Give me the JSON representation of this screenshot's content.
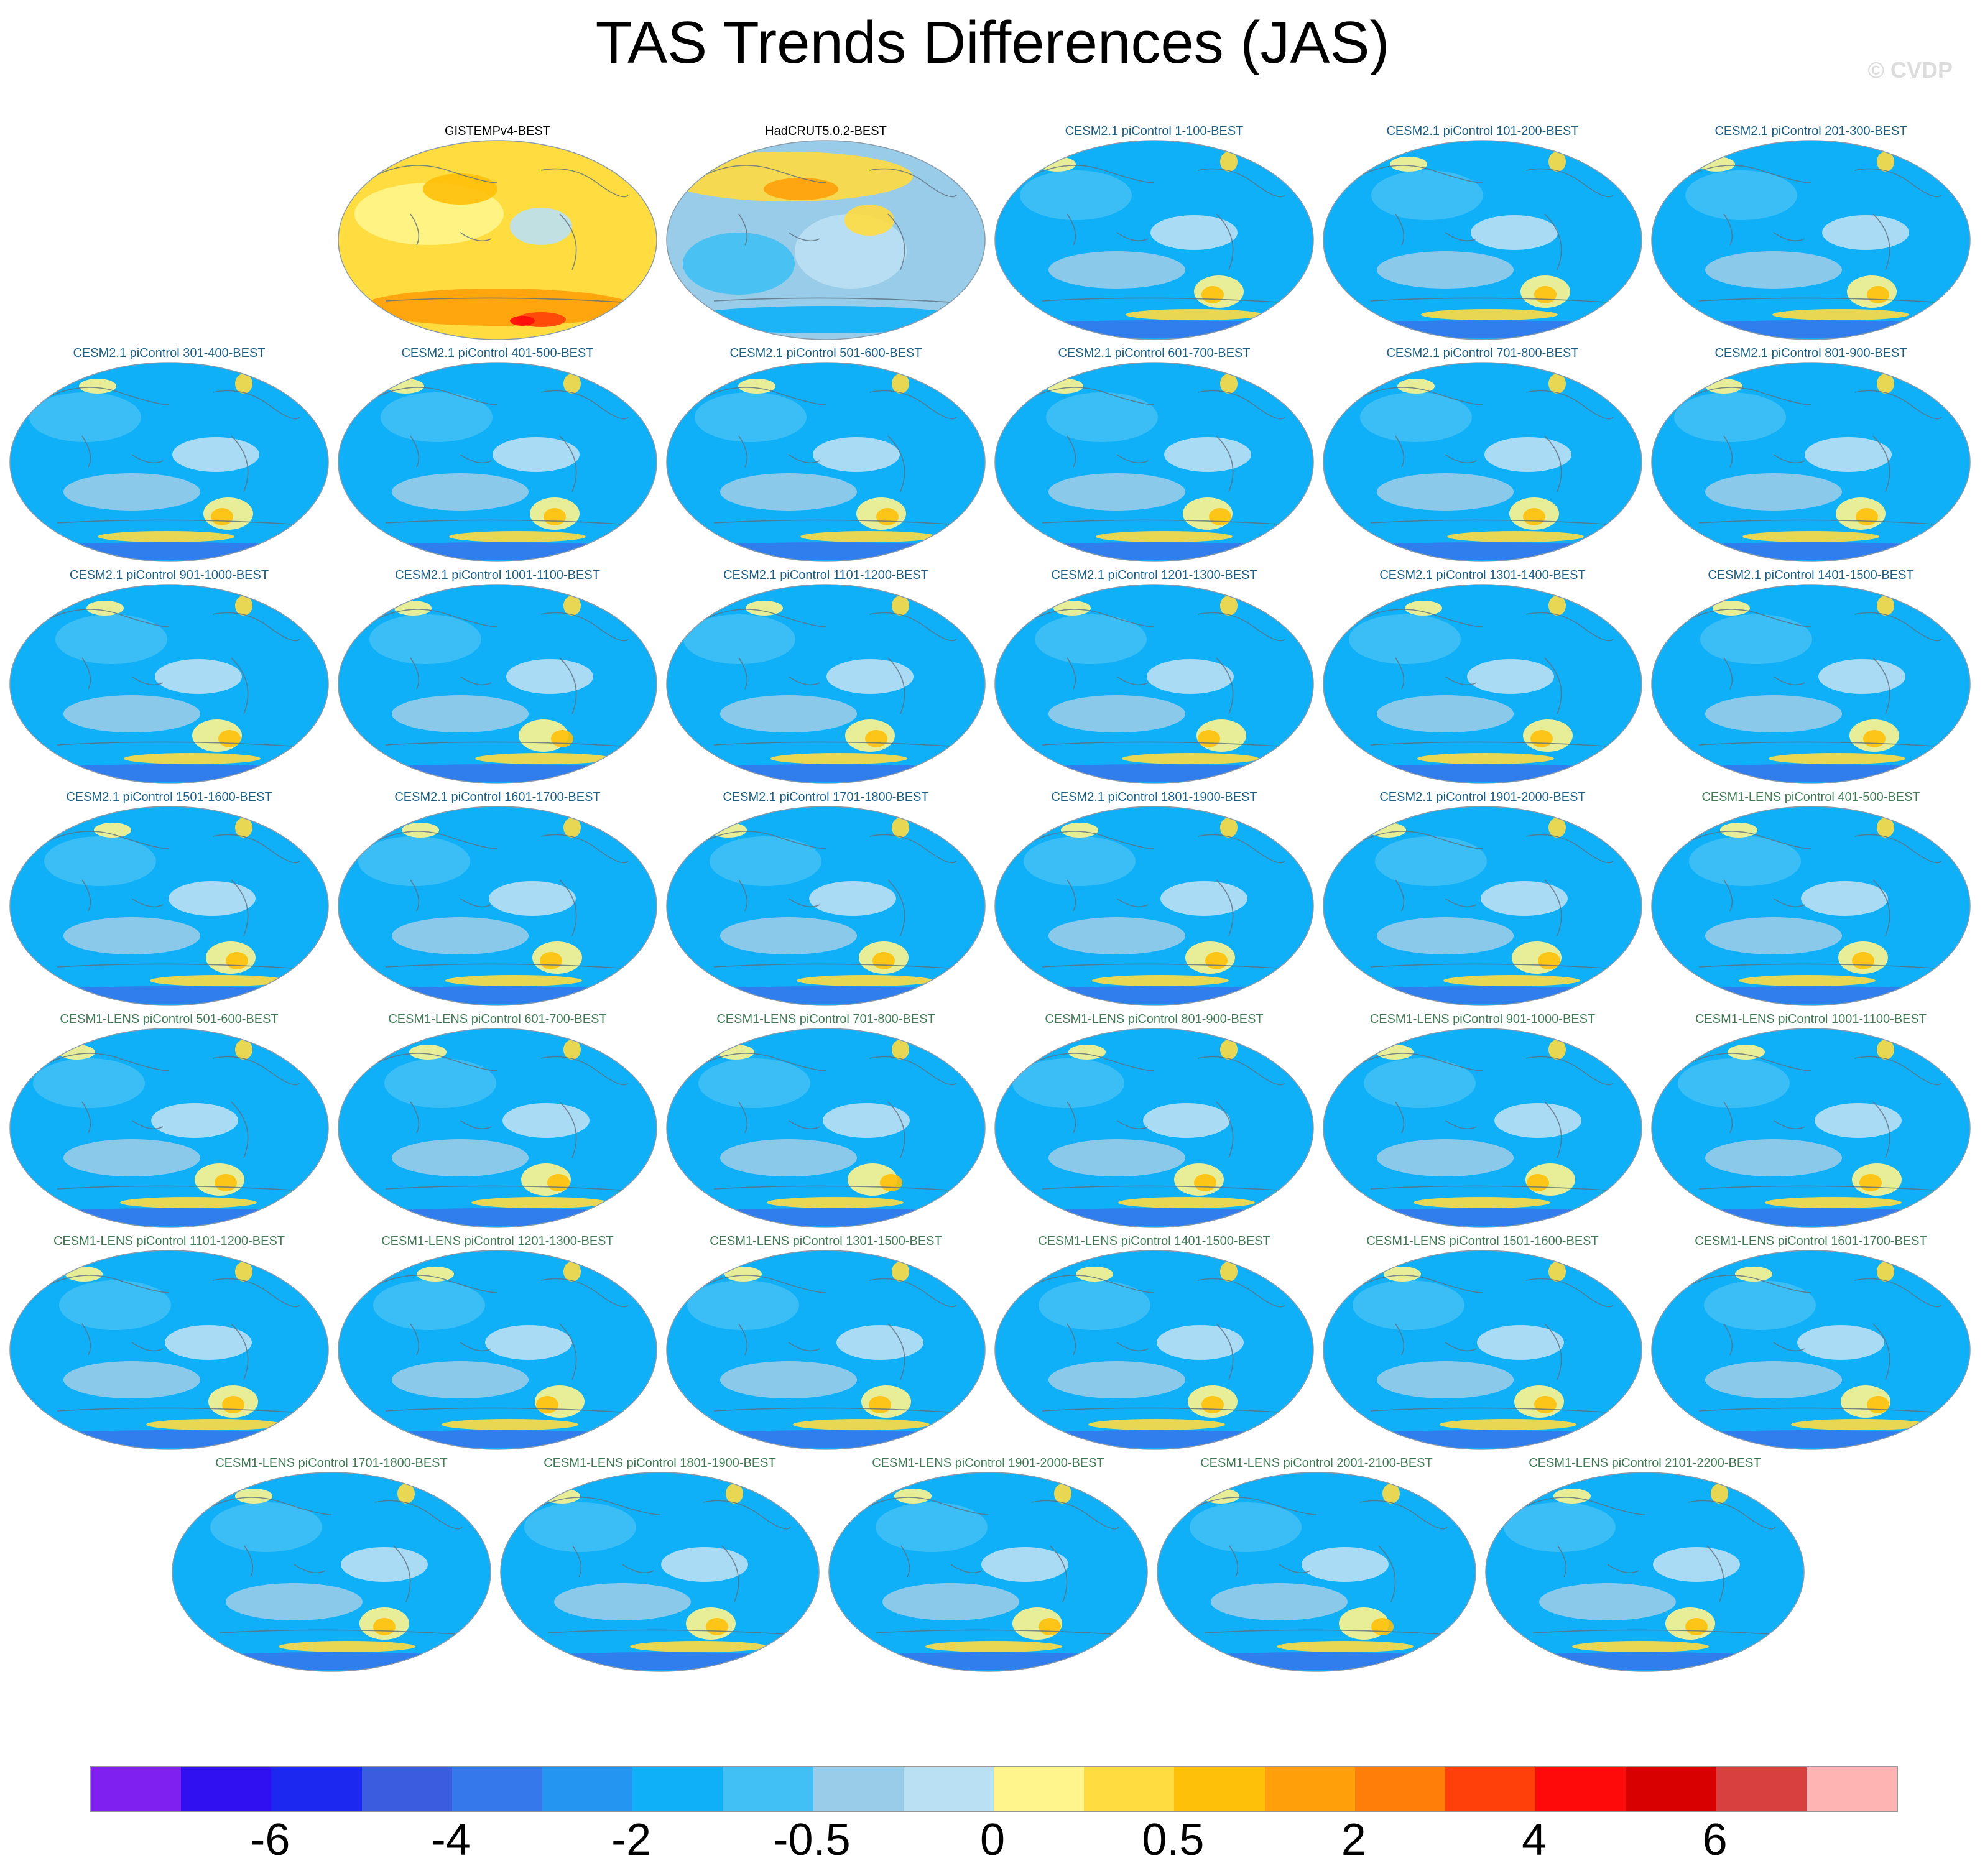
{
  "title": "TAS Trends Differences (JAS)",
  "watermark": "© CVDP",
  "colorbar": {
    "colors": [
      "#8020f0",
      "#3010f0",
      "#1c28f0",
      "#3c5ce0",
      "#3478ec",
      "#2496f2",
      "#10b0f8",
      "#40c0f4",
      "#98cce8",
      "#bae0f4",
      "#fff58c",
      "#ffdc40",
      "#ffc00a",
      "#ffa00a",
      "#ff7e0a",
      "#ff400a",
      "#ff0a0a",
      "#d80000",
      "#d84040",
      "#ffb4b4"
    ],
    "labels": [
      "-6",
      "-4",
      "-2",
      "-0.5",
      "0",
      "0.5",
      "2",
      "4",
      "6"
    ]
  },
  "panels": [
    {
      "label": "GISTEMPv4-BEST",
      "group": "obs",
      "style": "warm"
    },
    {
      "label": "HadCRUT5.0.2-BEST",
      "group": "obs",
      "style": "mixed"
    },
    {
      "label": "CESM2.1 piControl 1-100-BEST",
      "group": "c21",
      "style": "cool"
    },
    {
      "label": "CESM2.1 piControl 101-200-BEST",
      "group": "c21",
      "style": "cool"
    },
    {
      "label": "CESM2.1 piControl 201-300-BEST",
      "group": "c21",
      "style": "cool"
    },
    {
      "label": "CESM2.1 piControl 301-400-BEST",
      "group": "c21",
      "style": "cool"
    },
    {
      "label": "CESM2.1 piControl 401-500-BEST",
      "group": "c21",
      "style": "cool"
    },
    {
      "label": "CESM2.1 piControl 501-600-BEST",
      "group": "c21",
      "style": "cool"
    },
    {
      "label": "CESM2.1 piControl 601-700-BEST",
      "group": "c21",
      "style": "cool"
    },
    {
      "label": "CESM2.1 piControl 701-800-BEST",
      "group": "c21",
      "style": "cool"
    },
    {
      "label": "CESM2.1 piControl 801-900-BEST",
      "group": "c21",
      "style": "cool"
    },
    {
      "label": "CESM2.1 piControl 901-1000-BEST",
      "group": "c21",
      "style": "cool"
    },
    {
      "label": "CESM2.1 piControl 1001-1100-BEST",
      "group": "c21",
      "style": "cool"
    },
    {
      "label": "CESM2.1 piControl 1101-1200-BEST",
      "group": "c21",
      "style": "cool"
    },
    {
      "label": "CESM2.1 piControl 1201-1300-BEST",
      "group": "c21",
      "style": "cool"
    },
    {
      "label": "CESM2.1 piControl 1301-1400-BEST",
      "group": "c21",
      "style": "cool"
    },
    {
      "label": "CESM2.1 piControl 1401-1500-BEST",
      "group": "c21",
      "style": "cool"
    },
    {
      "label": "CESM2.1 piControl 1501-1600-BEST",
      "group": "c21",
      "style": "cool"
    },
    {
      "label": "CESM2.1 piControl 1601-1700-BEST",
      "group": "c21",
      "style": "cool"
    },
    {
      "label": "CESM2.1 piControl 1701-1800-BEST",
      "group": "c21",
      "style": "cool"
    },
    {
      "label": "CESM2.1 piControl 1801-1900-BEST",
      "group": "c21",
      "style": "cool"
    },
    {
      "label": "CESM2.1 piControl 1901-2000-BEST",
      "group": "c21",
      "style": "cool"
    },
    {
      "label": "CESM1-LENS piControl 401-500-BEST",
      "group": "lens",
      "style": "cool"
    },
    {
      "label": "CESM1-LENS piControl 501-600-BEST",
      "group": "lens",
      "style": "cool"
    },
    {
      "label": "CESM1-LENS piControl 601-700-BEST",
      "group": "lens",
      "style": "cool"
    },
    {
      "label": "CESM1-LENS piControl 701-800-BEST",
      "group": "lens",
      "style": "cool"
    },
    {
      "label": "CESM1-LENS piControl 801-900-BEST",
      "group": "lens",
      "style": "cool"
    },
    {
      "label": "CESM1-LENS piControl 901-1000-BEST",
      "group": "lens",
      "style": "cool"
    },
    {
      "label": "CESM1-LENS piControl 1001-1100-BEST",
      "group": "lens",
      "style": "cool"
    },
    {
      "label": "CESM1-LENS piControl 1101-1200-BEST",
      "group": "lens",
      "style": "cool"
    },
    {
      "label": "CESM1-LENS piControl 1201-1300-BEST",
      "group": "lens",
      "style": "cool"
    },
    {
      "label": "CESM1-LENS piControl 1301-1500-BEST",
      "group": "lens",
      "style": "cool"
    },
    {
      "label": "CESM1-LENS piControl 1401-1500-BEST",
      "group": "lens",
      "style": "cool"
    },
    {
      "label": "CESM1-LENS piControl 1501-1600-BEST",
      "group": "lens",
      "style": "cool"
    },
    {
      "label": "CESM1-LENS piControl 1601-1700-BEST",
      "group": "lens",
      "style": "cool"
    },
    {
      "label": "CESM1-LENS piControl 1701-1800-BEST",
      "group": "lens",
      "style": "cool"
    },
    {
      "label": "CESM1-LENS piControl 1801-1900-BEST",
      "group": "lens",
      "style": "cool"
    },
    {
      "label": "CESM1-LENS piControl 1901-2000-BEST",
      "group": "lens",
      "style": "cool"
    },
    {
      "label": "CESM1-LENS piControl 2001-2100-BEST",
      "group": "lens",
      "style": "cool"
    },
    {
      "label": "CESM1-LENS piControl 2101-2200-BEST",
      "group": "lens",
      "style": "cool"
    }
  ]
}
